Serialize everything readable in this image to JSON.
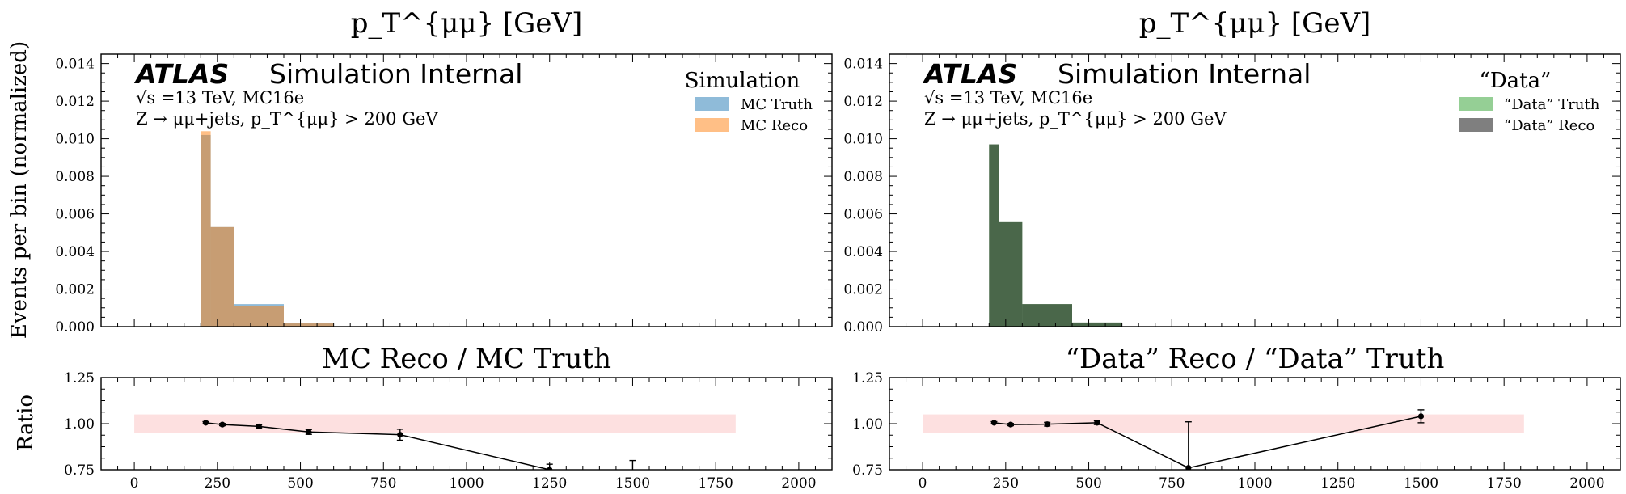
{
  "figure": {
    "ylabel_top": "Events per bin (normalized)",
    "ylabel_bottom": "Ratio"
  },
  "chart_data": [
    {
      "type": "bar",
      "panel": "top-left",
      "title": "p_T^{μμ} [GeV]",
      "atlas_label": "ATLAS",
      "atlas_suffix": "Simulation Internal",
      "info_line1": "√s =13 TeV, MC16e",
      "info_line2": "Z → μμ+jets, p_T^{μμ} > 200 GeV",
      "legend_title": "Simulation",
      "legend_placement": "top-right",
      "bin_edges": [
        200,
        230,
        300,
        450,
        600
      ],
      "series": [
        {
          "name": "MC Truth",
          "color": "#1f77b4",
          "values": [
            0.0102,
            0.0053,
            0.0012,
            0.00018
          ]
        },
        {
          "name": "MC Reco",
          "color": "#ff7f0e",
          "values": [
            0.0104,
            0.0053,
            0.0011,
            0.00017
          ]
        }
      ],
      "xlim": [
        -100,
        2100
      ],
      "ylim": [
        0,
        0.0145
      ],
      "yticks": [
        "0.000",
        "0.002",
        "0.004",
        "0.006",
        "0.008",
        "0.010",
        "0.012",
        "0.014"
      ]
    },
    {
      "type": "bar",
      "panel": "top-right",
      "title": "p_T^{μμ} [GeV]",
      "atlas_label": "ATLAS",
      "atlas_suffix": "Simulation Internal",
      "info_line1": "√s =13 TeV, MC16e",
      "info_line2": "Z → μμ+jets, p_T^{μμ} > 200 GeV",
      "legend_title": "“Data”",
      "legend_placement": "top-right",
      "bin_edges": [
        200,
        230,
        300,
        450,
        600
      ],
      "series": [
        {
          "name": "“Data” Truth",
          "color": "#2ca02c",
          "values": [
            0.0097,
            0.0056,
            0.0012,
            0.00022
          ]
        },
        {
          "name": "“Data” Reco",
          "color": "#000000",
          "values": [
            0.0097,
            0.0056,
            0.0012,
            0.00022
          ]
        }
      ],
      "xlim": [
        -100,
        2100
      ],
      "ylim": [
        0,
        0.0145
      ],
      "yticks": [
        "0.000",
        "0.002",
        "0.004",
        "0.006",
        "0.008",
        "0.010",
        "0.012",
        "0.014"
      ]
    },
    {
      "type": "line",
      "panel": "bottom-left",
      "title": "MC Reco / MC Truth",
      "band": {
        "x": [
          0,
          1810
        ],
        "y": [
          0.95,
          1.05
        ],
        "color": "#fde0e0"
      },
      "x": [
        215,
        265,
        375,
        525,
        800,
        1250,
        1500
      ],
      "y": [
        1.005,
        0.995,
        0.985,
        0.955,
        0.94,
        0.75,
        0.7
      ],
      "yerr": [
        0.006,
        0.006,
        0.008,
        0.013,
        0.03,
        0.03,
        0.1
      ],
      "xlim": [
        -100,
        2100
      ],
      "ylim": [
        0.75,
        1.25
      ],
      "xticks": [
        "0",
        "250",
        "500",
        "750",
        "1000",
        "1250",
        "1500",
        "1750",
        "2000"
      ],
      "yticks": [
        "0.75",
        "1.00",
        "1.25"
      ]
    },
    {
      "type": "line",
      "panel": "bottom-right",
      "title": "“Data” Reco / “Data” Truth",
      "band": {
        "x": [
          0,
          1810
        ],
        "y": [
          0.95,
          1.05
        ],
        "color": "#fde0e0"
      },
      "x": [
        215,
        265,
        375,
        525,
        800,
        1500
      ],
      "y": [
        1.005,
        0.995,
        0.997,
        1.005,
        0.76,
        1.04
      ],
      "yerr": [
        0.006,
        0.006,
        0.01,
        0.01,
        0.25,
        0.035
      ],
      "xlim": [
        -100,
        2100
      ],
      "ylim": [
        0.75,
        1.25
      ],
      "xticks": [
        "0",
        "250",
        "500",
        "750",
        "1000",
        "1250",
        "1500",
        "1750",
        "2000"
      ],
      "yticks": [
        "0.75",
        "1.00",
        "1.25"
      ]
    }
  ]
}
